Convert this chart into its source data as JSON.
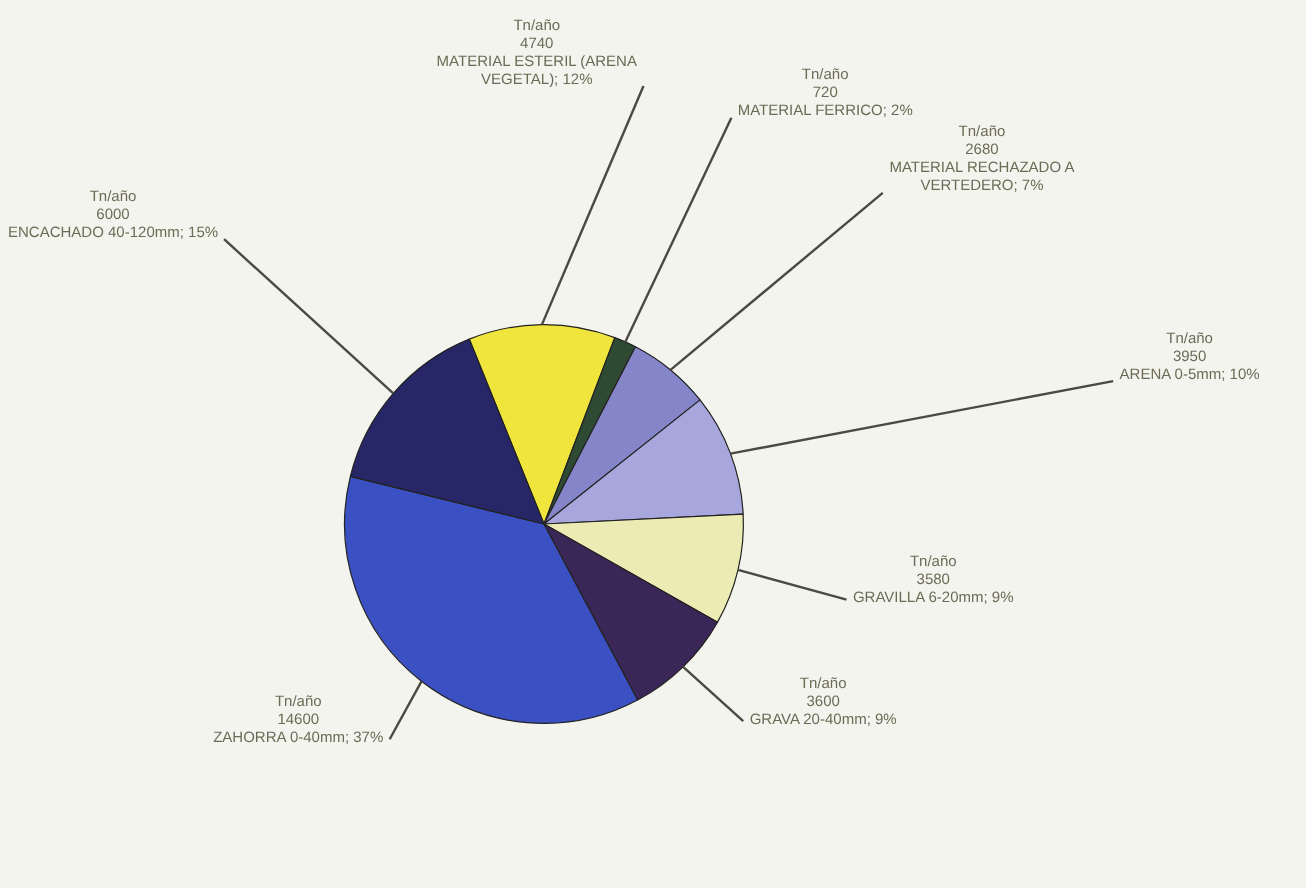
{
  "chart_data": {
    "type": "pie",
    "ylabel": "Tn/año",
    "categories": [
      "MATERIAL ESTERIL (ARENA VEGETAL); 12%",
      "MATERIAL FERRICO; 2%",
      "MATERIAL RECHAZADO A VERTEDERO; 7%",
      "ARENA 0-5mm; 10%",
      "GRAVILLA 6-20mm; 9%",
      "GRAVA 20-40mm; 9%",
      "ZAHORRA 0-40mm; 37%",
      "ENCACHADO 40-120mm; 15%"
    ],
    "values": [
      4740,
      720,
      2680,
      3950,
      3580,
      3600,
      14600,
      6000
    ],
    "colors": [
      "#efe53c",
      "#2f4a33",
      "#8585c9",
      "#a7a7de",
      "#ecebb3",
      "#3b2658",
      "#3b50c2",
      "#272667"
    ],
    "data_labels": true,
    "legend": false
  }
}
